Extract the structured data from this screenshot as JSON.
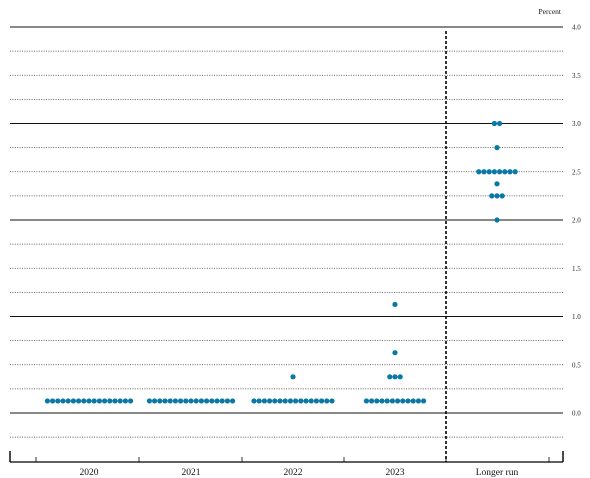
{
  "chart_data": {
    "type": "scatter",
    "unit_label": "Percent",
    "categories": [
      "2020",
      "2021",
      "2022",
      "2023",
      "Longer run"
    ],
    "ylim": [
      -0.125,
      4.0
    ],
    "y_ticks": [
      "0.0",
      "0.5",
      "1.0",
      "1.5",
      "2.0",
      "2.5",
      "3.0",
      "3.5",
      "4.0"
    ],
    "grid": "dotted at 0.25 increments, solid at whole numbers",
    "separator": "dashed vertical line before Longer run",
    "dot_color": "#0a78a6",
    "series": [
      {
        "category": "2020",
        "points": [
          {
            "y": 0.125,
            "count": 17
          }
        ]
      },
      {
        "category": "2021",
        "points": [
          {
            "y": 0.125,
            "count": 17
          }
        ]
      },
      {
        "category": "2022",
        "points": [
          {
            "y": 0.125,
            "count": 16
          },
          {
            "y": 0.375,
            "count": 1
          }
        ]
      },
      {
        "category": "2023",
        "points": [
          {
            "y": 0.125,
            "count": 12
          },
          {
            "y": 0.375,
            "count": 3
          },
          {
            "y": 0.625,
            "count": 1
          },
          {
            "y": 1.125,
            "count": 1
          }
        ]
      },
      {
        "category": "Longer run",
        "points": [
          {
            "y": 2.0,
            "count": 1
          },
          {
            "y": 2.25,
            "count": 3
          },
          {
            "y": 2.375,
            "count": 1
          },
          {
            "y": 2.5,
            "count": 8
          },
          {
            "y": 2.75,
            "count": 1
          },
          {
            "y": 3.0,
            "count": 2
          }
        ]
      }
    ]
  }
}
